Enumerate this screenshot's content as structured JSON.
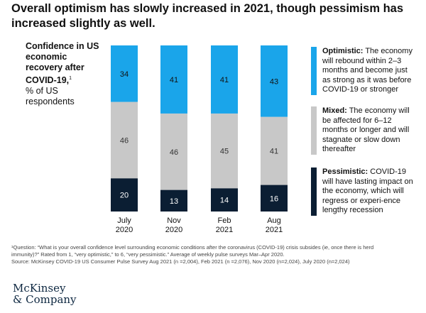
{
  "title": "Overall optimism has slowly increased in 2021, though pessimism has increased slightly as well.",
  "ylabel": {
    "bold": "Confidence in US economic recovery after COVID-19,",
    "sup": "1",
    "rest": "% of US respondents"
  },
  "colors": {
    "optimistic": "#1aa5ea",
    "mixed": "#c8c8c8",
    "pessimistic": "#0b1e33"
  },
  "legend": [
    {
      "name": "Optimistic:",
      "desc": "The economy will rebound within 2–3 months and become just as strong as it was before COVID-19 or stronger"
    },
    {
      "name": "Mixed:",
      "desc": "The economy will be affected for 6–12 months or longer and will stagnate or slow down thereafter"
    },
    {
      "name": "Pessimistic:",
      "desc": "COVID-19 will have lasting impact on the economy, which will regress or experi-ence lengthy recession"
    }
  ],
  "chart_data": {
    "type": "bar",
    "stacked": true,
    "categories": [
      [
        "July",
        "2020"
      ],
      [
        "Nov",
        "2020"
      ],
      [
        "Feb",
        "2021"
      ],
      [
        "Aug",
        "2021"
      ]
    ],
    "series": [
      {
        "name": "Pessimistic",
        "values": [
          20,
          13,
          14,
          16
        ]
      },
      {
        "name": "Mixed",
        "values": [
          46,
          46,
          45,
          41
        ]
      },
      {
        "name": "Optimistic",
        "values": [
          34,
          41,
          41,
          43
        ]
      }
    ],
    "ylim": [
      0,
      100
    ]
  },
  "footnote": {
    "line1": "¹Question: “What is your overall confidence level surrounding economic conditions after the coronavirus (COVID-19) crisis subsides (ie, once there is herd",
    "line2": "immunity)?” Rated from 1, “very optimistic,” to 6, “very pessimistic.” Average of weekly pulse surveys Mar–Apr 2020.",
    "line3": "Source: McKinsey COVID-19 US Consumer Pulse Survey Aug 2021 (n =2,004), Feb 2021 (n =2,076), Nov 2020 (n=2,024), July 2020 (n=2,024)"
  },
  "logo": {
    "line1": "McKinsey",
    "line2": "& Company"
  }
}
